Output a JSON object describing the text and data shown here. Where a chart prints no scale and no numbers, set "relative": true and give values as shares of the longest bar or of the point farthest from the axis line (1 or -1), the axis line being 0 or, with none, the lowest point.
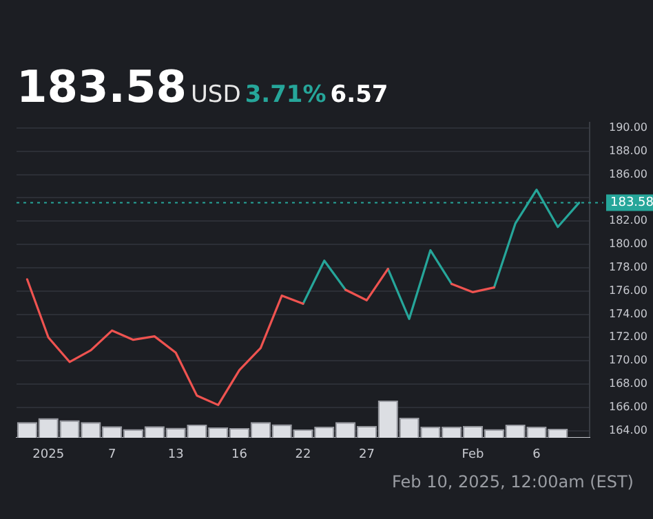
{
  "chart_data": [
    {
      "type": "line",
      "title": "183.58",
      "subtitle": "USD",
      "annotations": [
        "3.71%",
        "6.57",
        "Feb 10, 2025, 12:00am (EST)"
      ],
      "categories": [
        null,
        "2025",
        null,
        null,
        "7",
        null,
        null,
        "13",
        null,
        null,
        "16",
        null,
        null,
        "22",
        null,
        null,
        "27",
        null,
        null,
        null,
        null,
        "Feb",
        null,
        null,
        "6",
        null,
        null
      ],
      "series": [
        {
          "color": "#ef5350",
          "values": [
            177.0,
            172.0,
            169.9,
            170.9,
            172.6,
            171.8,
            172.1,
            170.7,
            167.0,
            166.2,
            169.2,
            171.1,
            175.6,
            174.9,
            null,
            176.1,
            175.2,
            177.9,
            null,
            null,
            176.6,
            175.9,
            176.3,
            null,
            null,
            null,
            null
          ]
        },
        {
          "color": "#26a69a",
          "values": [
            null,
            null,
            null,
            null,
            null,
            null,
            null,
            null,
            null,
            null,
            null,
            null,
            null,
            174.9,
            178.6,
            176.1,
            null,
            177.9,
            173.6,
            179.5,
            176.6,
            null,
            176.3,
            181.8,
            184.7,
            181.5,
            183.58
          ]
        }
      ],
      "ylim": [
        163.5,
        190.5
      ],
      "yticks": [
        {
          "value": 164,
          "label": "164.00"
        },
        {
          "value": 166,
          "label": "166.00"
        },
        {
          "value": 168,
          "label": "168.00"
        },
        {
          "value": 170,
          "label": "170.00"
        },
        {
          "value": 172,
          "label": "172.00"
        },
        {
          "value": 174,
          "label": "174.00"
        },
        {
          "value": 176,
          "label": "176.00"
        },
        {
          "value": 178,
          "label": "178.00"
        },
        {
          "value": 180,
          "label": "180.00"
        },
        {
          "value": 182,
          "label": "182.00"
        },
        {
          "value": 184,
          "label": null
        },
        {
          "value": 186,
          "label": "186.00"
        },
        {
          "value": 188,
          "label": "188.00"
        },
        {
          "value": 190,
          "label": "190.00"
        }
      ],
      "grid": "y",
      "ref_lines": [
        {
          "axis": "y",
          "value": 183.58,
          "label": "183.58",
          "color": "#26a69a",
          "line_style": "dotted"
        }
      ]
    },
    {
      "type": "bar",
      "categories": [
        null,
        null,
        null,
        null,
        null,
        null,
        null,
        null,
        null,
        null,
        null,
        null,
        null,
        null,
        null,
        null,
        null,
        null,
        null,
        null,
        null,
        null,
        null,
        null,
        null,
        null,
        null
      ],
      "values": [
        0.42,
        0.53,
        0.47,
        0.42,
        0.31,
        0.23,
        0.31,
        0.27,
        0.35,
        0.28,
        0.26,
        0.42,
        0.36,
        0.22,
        0.3,
        0.42,
        0.32,
        1,
        0.54,
        0.3,
        0.3,
        0.32,
        0.23,
        0.35,
        0.3,
        0.24,
        null
      ],
      "color": "#dcdee3",
      "relative": true,
      "tick_labels": false
    }
  ]
}
